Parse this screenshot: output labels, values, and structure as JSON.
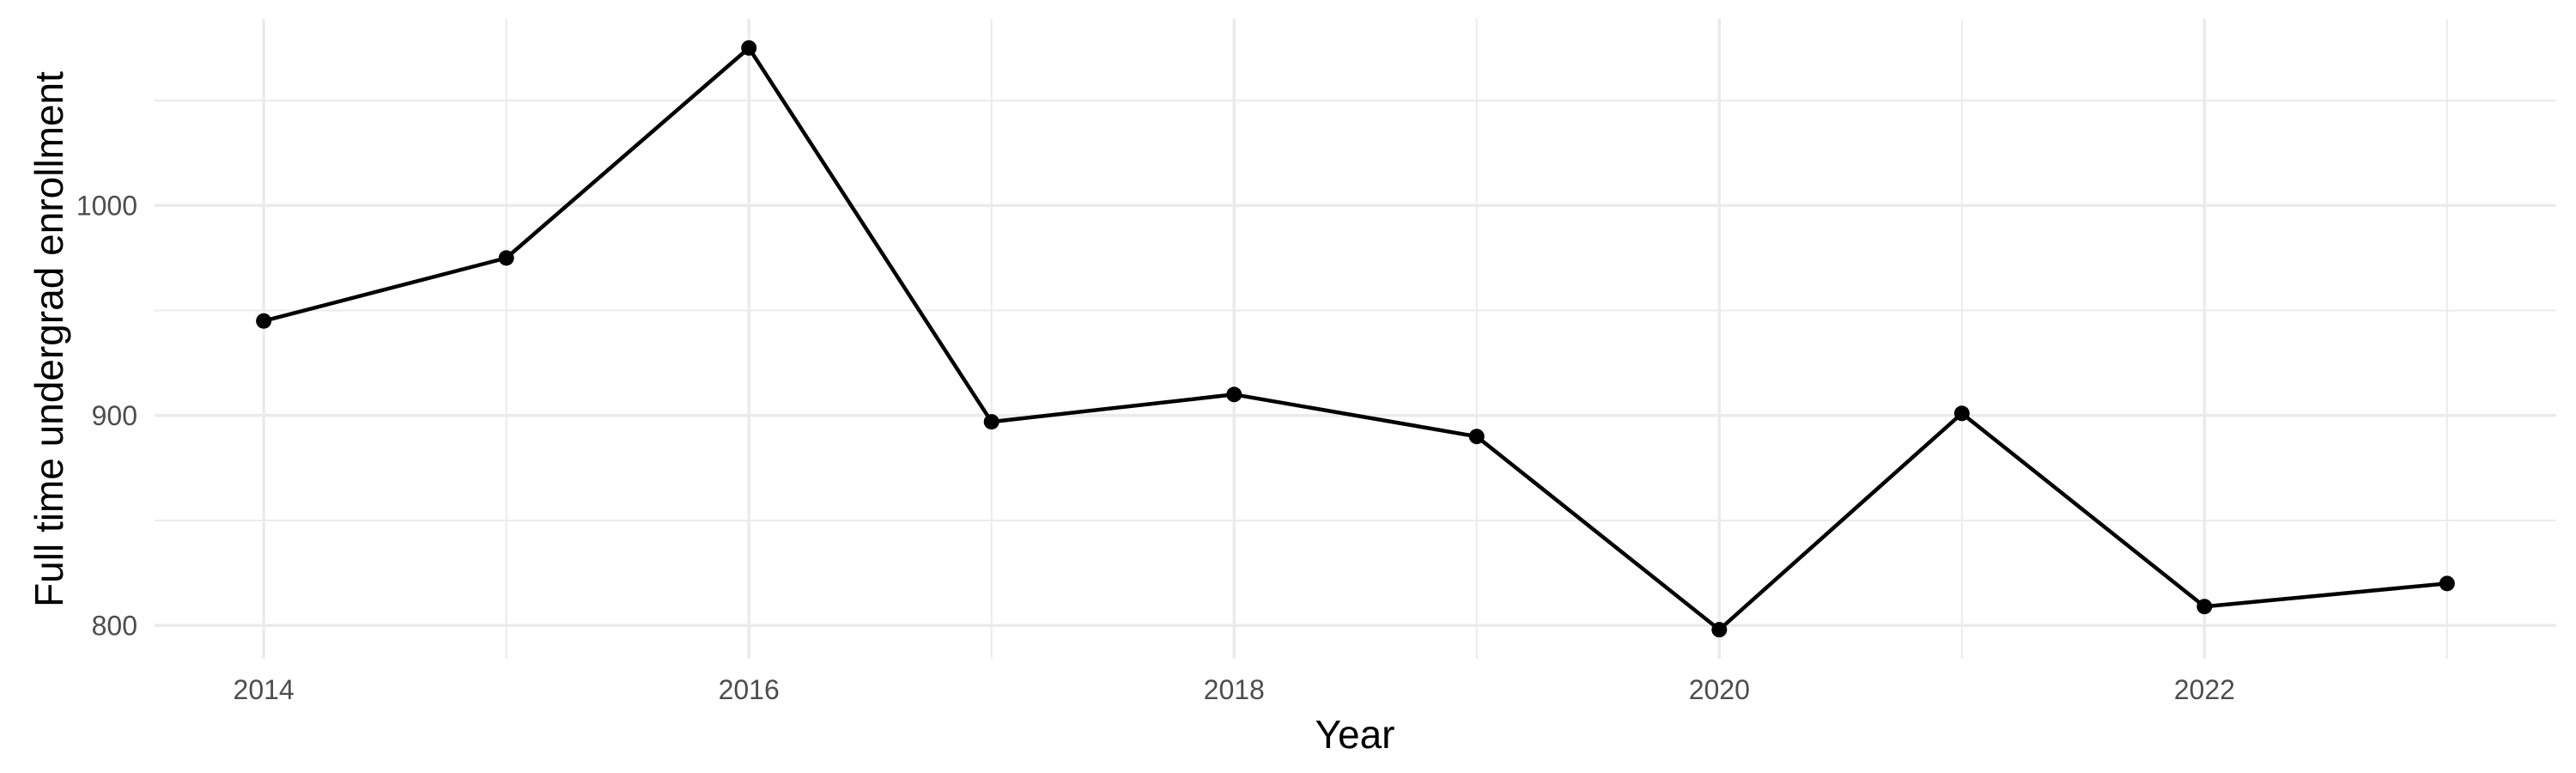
{
  "chart_data": {
    "type": "line",
    "title": "",
    "xlabel": "Year",
    "ylabel": "Full time undergrad enrollment",
    "x": [
      2014,
      2015,
      2016,
      2017,
      2018,
      2019,
      2020,
      2021,
      2022,
      2023
    ],
    "series": [
      {
        "name": "Full time undergrad enrollment",
        "values": [
          945,
          975,
          1075,
          897,
          910,
          890,
          798,
          901,
          809,
          820
        ]
      }
    ],
    "x_major_ticks": [
      2014,
      2016,
      2018,
      2020,
      2022
    ],
    "x_minor_ticks": [
      2015,
      2017,
      2019,
      2021,
      2023
    ],
    "y_major_ticks": [
      800,
      900,
      1000
    ],
    "y_minor_ticks": [
      850,
      950,
      1050
    ],
    "x_tick_labels": [
      "2014",
      "2016",
      "2018",
      "2020",
      "2022"
    ],
    "y_tick_labels": [
      "800",
      "900",
      "1000"
    ],
    "xlim": [
      2013.55,
      2023.45
    ],
    "ylim": [
      784.15,
      1088.85
    ],
    "grid": "major-and-minor, no axis lines, no tick marks",
    "legend": "none",
    "colors": {
      "background": "#FFFFFF",
      "grid_line": "#EBEBEB",
      "series_line": "#000000",
      "point_fill": "#000000",
      "tick_label": "#4D4D4D",
      "axis_title": "#000000"
    }
  }
}
